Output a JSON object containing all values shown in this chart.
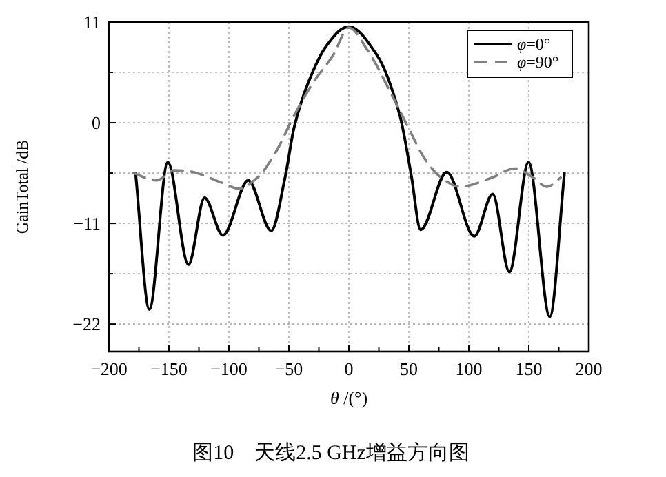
{
  "chart_data": {
    "type": "line",
    "title": "图10　天线2.5 GHz增益方向图",
    "xlabel": "*θ* /(°)",
    "ylabel": "GainTotal /dB",
    "xlim": [
      -200,
      200
    ],
    "xticks": [
      -200,
      -150,
      -100,
      -50,
      0,
      50,
      100,
      150,
      200
    ],
    "ylim": [
      -25,
      11
    ],
    "yticks": [
      -22,
      -11,
      0,
      11
    ],
    "grid": true,
    "legend": "top right",
    "series": [
      {
        "name": "*φ*=0°",
        "color": "#000000",
        "line_style": "solid",
        "x": [
          -177.8,
          -166.3,
          -150.9,
          -133.7,
          -120.3,
          -105,
          -83.9,
          -64.7,
          -53.2,
          -45.6,
          -34.1,
          -18.7,
          -3.4,
          0,
          23.4,
          42.5,
          52.1,
          59.8,
          81.6,
          104.6,
          119.9,
          133.8,
          149.8,
          167.5,
          179.7
        ],
        "values": [
          -5.5,
          -20.4,
          -4.3,
          -15.5,
          -8.2,
          -12.3,
          -6.3,
          -11.8,
          -6.0,
          -0.5,
          4.3,
          8.4,
          10.4,
          10.5,
          7.4,
          0.8,
          -5.8,
          -11.7,
          -5.4,
          -12.4,
          -7.8,
          -16.3,
          -4.3,
          -21.2,
          -5.5
        ]
      },
      {
        "name": "*φ*=90°",
        "color": "#808080",
        "line_style": "dashed",
        "x": [
          -179.7,
          -160.6,
          -145.2,
          -133.7,
          -106.9,
          -91.6,
          -76.2,
          -60.9,
          -45.6,
          -30.2,
          -13,
          0,
          15.7,
          34.8,
          50.2,
          63.6,
          77,
          92.3,
          119.2,
          138.3,
          153.7,
          165.2,
          176.6
        ],
        "values": [
          -5.5,
          -6.3,
          -5.2,
          -5.3,
          -6.5,
          -7.2,
          -6.0,
          -3.2,
          0.8,
          4.3,
          7.4,
          10.4,
          7.9,
          3.3,
          -0.7,
          -4.0,
          -6.0,
          -7.0,
          -6.0,
          -5.0,
          -6.0,
          -7.0,
          -6.0
        ]
      }
    ]
  }
}
